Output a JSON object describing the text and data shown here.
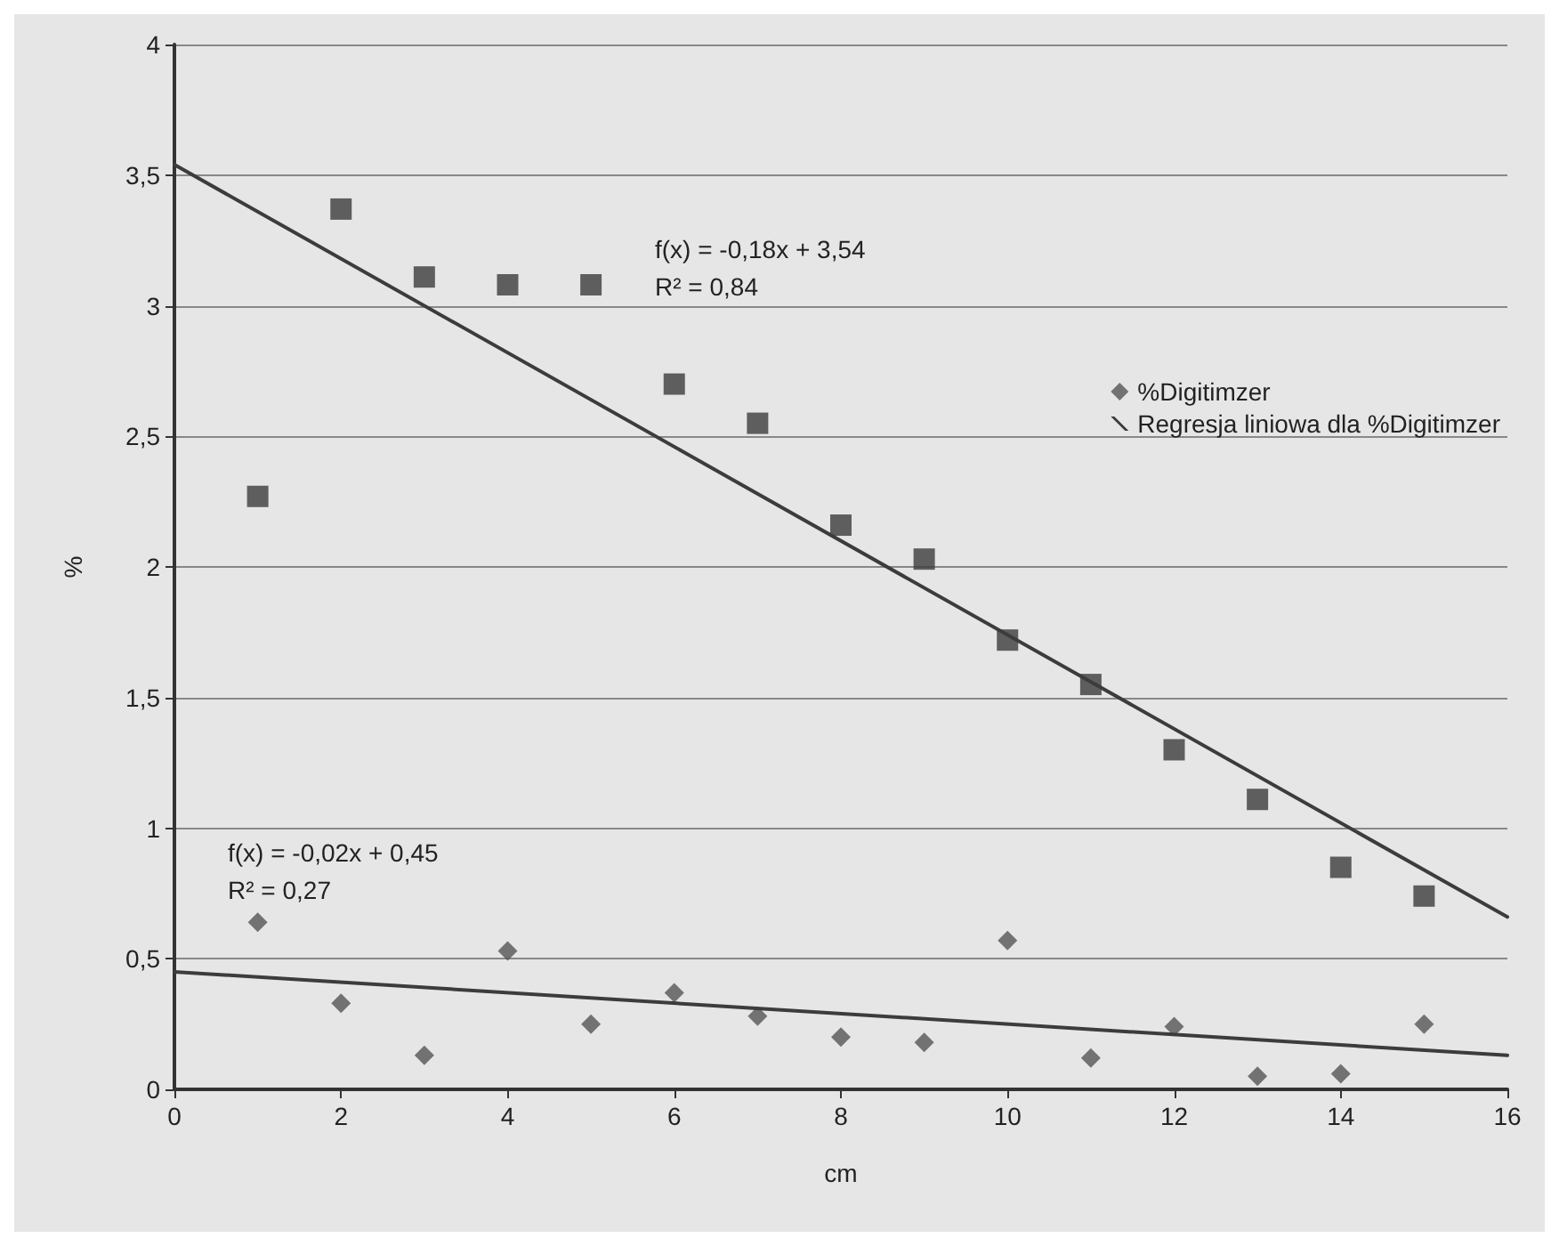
{
  "chart_data": {
    "type": "scatter",
    "xlabel": "cm",
    "ylabel": "%",
    "xlim": [
      0,
      16
    ],
    "xticks": [
      0,
      2,
      4,
      6,
      8,
      10,
      12,
      14,
      16
    ],
    "ylim": [
      0,
      4
    ],
    "yticks": [
      0,
      {
        "value": 0.5,
        "label": "0,5"
      },
      1,
      {
        "value": 1.5,
        "label": "1,5"
      },
      2,
      {
        "value": 2.5,
        "label": "2,5"
      },
      3,
      {
        "value": 3.5,
        "label": "3,5"
      },
      4
    ],
    "grid": "y",
    "legend": "right",
    "series": [
      {
        "marker": "square",
        "color": "#3c3c3c",
        "x": [
          1,
          2,
          3,
          4,
          5,
          6,
          7,
          8,
          9,
          10,
          11,
          12,
          13,
          14,
          15
        ],
        "values": [
          2.27,
          3.37,
          3.11,
          3.08,
          3.08,
          2.7,
          2.55,
          2.16,
          2.03,
          1.72,
          1.55,
          1.3,
          1.11,
          0.85,
          0.74
        ]
      },
      {
        "type": "line",
        "marker": "none",
        "line_style": "solid",
        "color": "#3c3c3c",
        "x": [
          0,
          16
        ],
        "values": [
          3.54,
          0.66
        ]
      },
      {
        "name": "%Digitimzer",
        "marker": "diamond",
        "color": "#555555",
        "x": [
          1,
          2,
          3,
          4,
          5,
          6,
          7,
          8,
          9,
          10,
          11,
          12,
          13,
          14,
          15
        ],
        "values": [
          0.64,
          0.33,
          0.13,
          0.53,
          0.25,
          0.37,
          0.28,
          0.2,
          0.18,
          0.57,
          0.12,
          0.24,
          0.05,
          0.06,
          0.25
        ]
      },
      {
        "type": "line",
        "name": "Regresja liniowa dla %Digitimzer",
        "marker": "none",
        "line_style": "solid",
        "color": "#3c3c3c",
        "x": [
          0,
          16
        ],
        "values": [
          0.45,
          0.13
        ]
      }
    ],
    "annotations": [
      "f(x) = -0,18x + 3,54",
      "R² = 0,84",
      "f(x) = -0,02x + 0,45",
      "R² = 0,27"
    ]
  }
}
